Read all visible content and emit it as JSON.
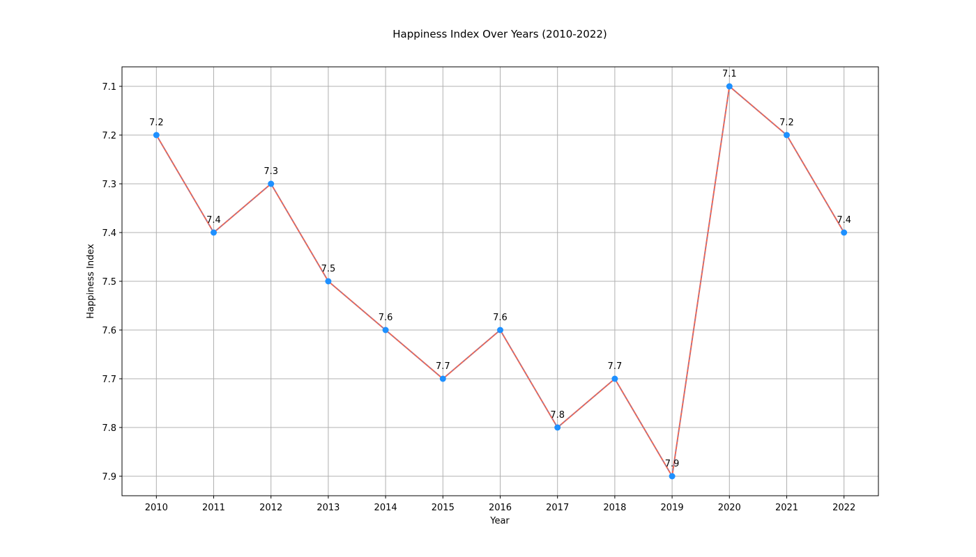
{
  "chart_data": {
    "type": "line",
    "title": "Happiness Index Over Years (2010-2022)",
    "xlabel": "Year",
    "ylabel": "Happiness Index",
    "x": [
      2010,
      2011,
      2012,
      2013,
      2014,
      2015,
      2016,
      2017,
      2018,
      2019,
      2020,
      2021,
      2022
    ],
    "y": [
      7.2,
      7.4,
      7.3,
      7.5,
      7.6,
      7.7,
      7.6,
      7.8,
      7.7,
      7.9,
      7.1,
      7.2,
      7.4
    ],
    "data_labels": [
      "7.2",
      "7.4",
      "7.3",
      "7.5",
      "7.6",
      "7.7",
      "7.6",
      "7.8",
      "7.7",
      "7.9",
      "7.1",
      "7.2",
      "7.4"
    ],
    "yticks": [
      7.1,
      7.2,
      7.3,
      7.4,
      7.5,
      7.6,
      7.7,
      7.8,
      7.9
    ],
    "ytick_labels": [
      "7.1",
      "7.2",
      "7.3",
      "7.4",
      "7.5",
      "7.6",
      "7.7",
      "7.8",
      "7.9"
    ],
    "xtick_labels": [
      "2010",
      "2011",
      "2012",
      "2013",
      "2014",
      "2015",
      "2016",
      "2017",
      "2018",
      "2019",
      "2020",
      "2021",
      "2022"
    ],
    "xlim": [
      2009.4,
      2022.6
    ],
    "ylim": [
      7.94,
      7.06
    ],
    "y_inverted": true,
    "grid": true,
    "legend": false,
    "colors": {
      "line": "#ff6347",
      "dash": "#1e90ff",
      "marker": "#1e90ff",
      "grid": "#b0b0b0"
    }
  }
}
